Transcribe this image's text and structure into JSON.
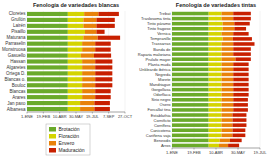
{
  "chart_data": [
    {
      "type": "bar",
      "orientation": "horizontal",
      "stacked": true,
      "title": "Fenología de variedades blancas",
      "categories": [
        "Cloretes",
        "Grullón",
        "Lairén",
        "Pisaillo",
        "Maturana",
        "Parraselin",
        "Monstruosa",
        "Gasuello",
        "Hassan",
        "Algaretes",
        "Ortega D.",
        "Blancas o.",
        "Bouloc",
        "Blancas",
        "Arares",
        "Jan paxo",
        "Albanesa"
      ],
      "series": [
        {
          "name": "Brotación",
          "color": "#6aaa2a",
          "values": [
            100,
            100,
            100,
            100,
            100,
            100,
            100,
            100,
            100,
            100,
            100,
            100,
            100,
            100,
            100,
            100,
            100
          ]
        },
        {
          "name": "Floración",
          "color": "#d4d400",
          "values": [
            40,
            38,
            38,
            42,
            38,
            35,
            35,
            32,
            35,
            35,
            35,
            35,
            35,
            35,
            35,
            30,
            30
          ]
        },
        {
          "name": "Envero",
          "color": "#e8820a",
          "values": [
            35,
            32,
            32,
            28,
            35,
            32,
            32,
            32,
            32,
            32,
            32,
            32,
            32,
            32,
            32,
            35,
            35
          ]
        },
        {
          "name": "Maduración",
          "color": "#c82000",
          "values": [
            50,
            45,
            45,
            20,
            55,
            38,
            38,
            42,
            42,
            42,
            42,
            42,
            42,
            38,
            38,
            38,
            38
          ]
        }
      ],
      "xlim": [
        0,
        240
      ],
      "xticks": [
        {
          "value": 0,
          "label": "1-ENE"
        },
        {
          "value": 40,
          "label": "19-FEB"
        },
        {
          "value": 80,
          "label": "10-ABR"
        },
        {
          "value": 120,
          "label": "30-MAY"
        },
        {
          "value": 160,
          "label": "19-JUL"
        },
        {
          "value": 200,
          "label": "7-SEP"
        },
        {
          "value": 240,
          "label": "27-OCT"
        }
      ]
    },
    {
      "type": "bar",
      "orientation": "horizontal",
      "stacked": true,
      "title": "Fenología de variedades tintas",
      "categories": [
        "Trebat",
        "Traslosoma tinta",
        "Tinto páramo",
        "Tinto fragoso",
        "Vernica",
        "Tempranillo",
        "Trassarras",
        "Banda de",
        "Raparia maloriana",
        "Prulafo mayor",
        "Planta muda",
        "Unkleardo ibérica",
        "Negreda",
        "Morete",
        "Mandriague",
        "Gorgollasa",
        "Odorflaca",
        "Sirio negro",
        "Osero",
        "Forcallat tina",
        "Establathia",
        "Cornificto",
        "Cornffera",
        "Canicotena",
        "Cariñena vaja",
        "Beneodis",
        "Arros"
      ],
      "series": [
        {
          "color": "#6aaa2a",
          "values": [
            100,
            100,
            100,
            100,
            100,
            100,
            100,
            100,
            100,
            100,
            100,
            100,
            100,
            100,
            100,
            100,
            100,
            100,
            100,
            100,
            100,
            100,
            100,
            100,
            100,
            100,
            100
          ]
        },
        {
          "color": "#d4d400",
          "values": [
            35,
            35,
            38,
            38,
            35,
            38,
            35,
            35,
            35,
            35,
            35,
            35,
            35,
            35,
            35,
            35,
            35,
            35,
            35,
            35,
            35,
            35,
            35,
            35,
            35,
            30,
            28
          ]
        },
        {
          "color": "#e8820a",
          "values": [
            32,
            32,
            32,
            32,
            32,
            28,
            32,
            32,
            32,
            38,
            32,
            32,
            32,
            32,
            32,
            32,
            32,
            32,
            32,
            32,
            30,
            30,
            30,
            30,
            30,
            28,
            25
          ]
        },
        {
          "color": "#c82000",
          "values": [
            48,
            48,
            42,
            32,
            42,
            52,
            58,
            48,
            48,
            42,
            42,
            42,
            42,
            42,
            42,
            42,
            42,
            40,
            40,
            40,
            38,
            38,
            38,
            35,
            35,
            32,
            30
          ]
        }
      ],
      "xlim": [
        0,
        240
      ],
      "xticks": [
        {
          "value": 0,
          "label": "1-ENE"
        },
        {
          "value": 60,
          "label": "19-FEB"
        },
        {
          "value": 120,
          "label": "10-ABR"
        },
        {
          "value": 180,
          "label": "30-MAY"
        },
        {
          "value": 240,
          "label": "19-JUL"
        }
      ]
    }
  ]
}
